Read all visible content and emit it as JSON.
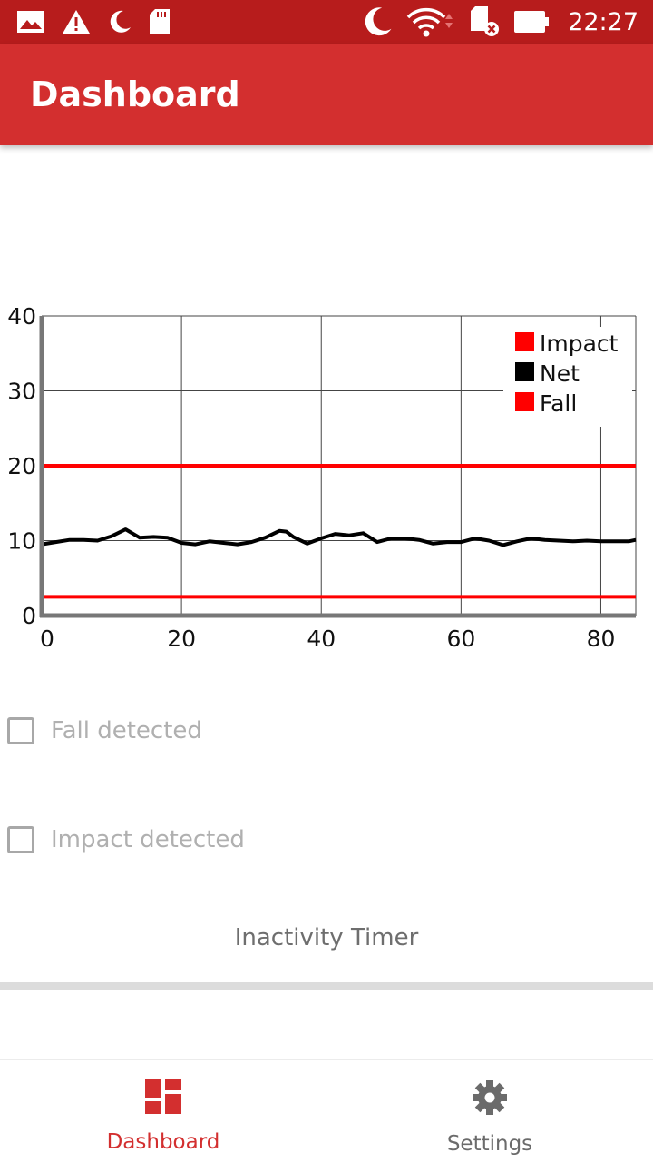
{
  "status_bar": {
    "time": "22:27",
    "left_icons": [
      "gallery-icon",
      "warning-icon",
      "moon-icon",
      "sd-card-icon"
    ],
    "right_icons": [
      "moon-icon",
      "wifi-icon",
      "sd-card-error-icon",
      "battery-icon"
    ]
  },
  "app_bar": {
    "title": "Dashboard"
  },
  "chart_data": {
    "type": "line",
    "xlim": [
      0,
      85
    ],
    "ylim": [
      0,
      40
    ],
    "x_ticks": [
      0,
      20,
      40,
      60,
      80
    ],
    "y_ticks": [
      0,
      10,
      20,
      30,
      40
    ],
    "grid": true,
    "legend_position": "top-right",
    "series": [
      {
        "name": "Impact",
        "color": "#ff0000",
        "x": [
          0,
          85
        ],
        "y": [
          20,
          20
        ]
      },
      {
        "name": "Net",
        "color": "#000000",
        "x": [
          0,
          2,
          4,
          6,
          8,
          10,
          12,
          14,
          16,
          18,
          20,
          22,
          24,
          26,
          28,
          30,
          32,
          34,
          35,
          36,
          38,
          40,
          42,
          44,
          46,
          48,
          50,
          52,
          54,
          56,
          58,
          60,
          62,
          64,
          66,
          68,
          70,
          72,
          74,
          76,
          78,
          80,
          82,
          84,
          85
        ],
        "y": [
          9.5,
          9.8,
          10.1,
          10.1,
          10.0,
          10.6,
          11.5,
          10.4,
          10.5,
          10.4,
          9.7,
          9.5,
          9.9,
          9.7,
          9.5,
          9.8,
          10.4,
          11.3,
          11.2,
          10.5,
          9.6,
          10.3,
          10.9,
          10.7,
          11.0,
          9.8,
          10.3,
          10.3,
          10.1,
          9.6,
          9.8,
          9.8,
          10.3,
          10.0,
          9.4,
          9.9,
          10.3,
          10.1,
          10.0,
          9.9,
          10.0,
          9.9,
          9.9,
          9.9,
          10.1
        ]
      },
      {
        "name": "Fall",
        "color": "#ff0000",
        "x": [
          0,
          85
        ],
        "y": [
          2.5,
          2.5
        ]
      }
    ]
  },
  "checks": {
    "fall": {
      "label": "Fall detected",
      "checked": false
    },
    "impact": {
      "label": "Impact detected",
      "checked": false
    }
  },
  "inactivity": {
    "label": "Inactivity Timer",
    "progress": 0
  },
  "bottom_nav": {
    "items": [
      {
        "label": "Dashboard",
        "icon": "dashboard-icon",
        "active": true
      },
      {
        "label": "Settings",
        "icon": "gear-icon",
        "active": false
      }
    ]
  }
}
